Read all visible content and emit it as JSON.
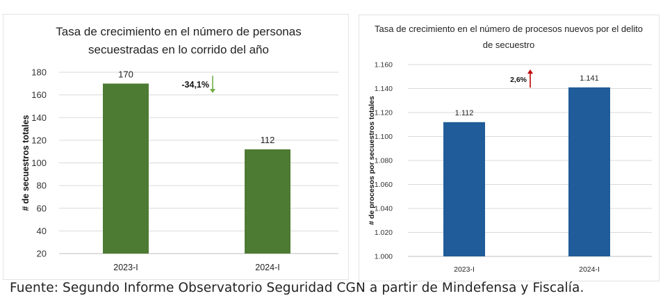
{
  "chart_data": [
    {
      "type": "bar",
      "title_lines": [
        "Tasa de crecimiento en el número de personas",
        "secuestradas en lo corrido del año"
      ],
      "xlabel": "",
      "ylabel": "# de secuestros totales",
      "categories": [
        "2023-I",
        "2024-I"
      ],
      "values": [
        170,
        112
      ],
      "value_labels": [
        "170",
        "112"
      ],
      "ylim": [
        20,
        180
      ],
      "yticks": [
        "20",
        "40",
        "60",
        "80",
        "100",
        "120",
        "140",
        "160",
        "180"
      ],
      "bar_color": "#4e7b33",
      "change_label": "-34,1%",
      "change_direction": "down",
      "change_color": "#70ad47",
      "grid": true
    },
    {
      "type": "bar",
      "title_lines": [
        "Tasa de crecimiento en el número de procesos nuevos por el delito",
        "de secuestro"
      ],
      "xlabel": "",
      "ylabel": "# de procesos por secuestros totales",
      "categories": [
        "2023-I",
        "2024-I"
      ],
      "values": [
        1.112,
        1.141
      ],
      "value_labels": [
        "1.112",
        "1.141"
      ],
      "ylim": [
        1.0,
        1.16
      ],
      "yticks": [
        "1.000",
        "1.020",
        "1.040",
        "1.060",
        "1.080",
        "1.100",
        "1.120",
        "1.140",
        "1.160"
      ],
      "bar_color": "#1f5c99",
      "change_label": "2,6%",
      "change_direction": "up",
      "change_color": "#c00000",
      "grid": true
    }
  ],
  "source_note": "Fuente: Segundo Informe Observatorio Seguridad CGN a partir de Mindefensa y Fiscalía."
}
